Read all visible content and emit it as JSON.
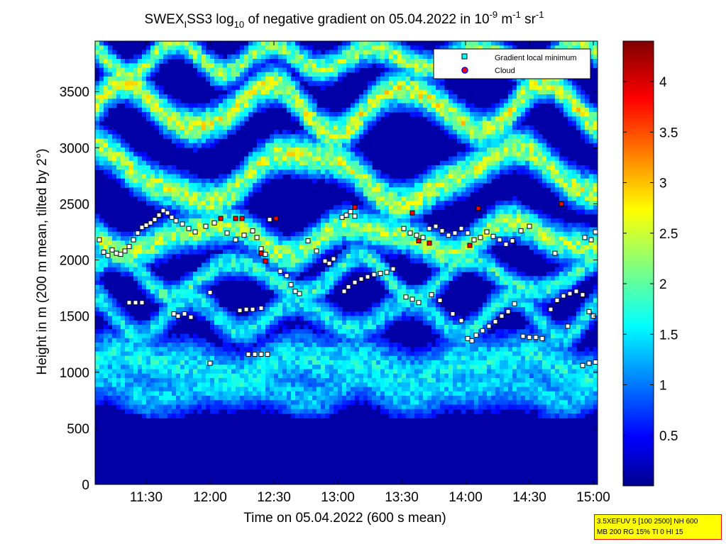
{
  "chart_data": {
    "type": "heatmap",
    "title": {
      "prefix": "SWEX",
      "subscript_1": "I",
      "middle": "SS3 log",
      "subscript_2": "10",
      "after_log": " of negative gradient on 05.04.2022 in 10",
      "sup_1": "-9",
      "unit_m": " m",
      "sup_2": "-1",
      "unit_sr": " sr",
      "sup_3": "-1"
    },
    "xlabel": "Time on 05.04.2022 (600 s mean)",
    "ylabel": "Height in m (200 m mean, tilted by 2°)",
    "x_range": [
      "11:06",
      "15:02"
    ],
    "x_ticks": [
      "11:30",
      "12:00",
      "12:30",
      "13:00",
      "13:30",
      "14:00",
      "14:30",
      "15:00"
    ],
    "y_range": [
      0,
      3950
    ],
    "y_ticks": [
      "0",
      "500",
      "1000",
      "1500",
      "2000",
      "2500",
      "3000",
      "3500"
    ],
    "colorbar": {
      "range": [
        0,
        4.4
      ],
      "ticks": [
        "0.5",
        "1",
        "1.5",
        "2",
        "2.5",
        "3",
        "3.5",
        "4"
      ],
      "colormap": "jet"
    },
    "legend": {
      "position": "top-right",
      "entries": [
        {
          "label": "Gradient local minimum",
          "marker": "square",
          "color": "#00ffff",
          "edge": "#000000"
        },
        {
          "label": "Cloud",
          "marker": "circle",
          "color": "#ff0000",
          "edge": "#0000ff"
        }
      ]
    },
    "layers": [
      {
        "base": 1050,
        "amp": 80,
        "freq": 0.9,
        "phase": 0.3,
        "thick": 260,
        "intensity": 1.55
      },
      {
        "base": 850,
        "amp": 60,
        "freq": 1.3,
        "phase": 1.2,
        "thick": 220,
        "intensity": 1.35
      },
      {
        "base": 1500,
        "amp": 150,
        "freq": 1.6,
        "phase": 2.0,
        "thick": 140,
        "intensity": 1.55
      },
      {
        "base": 1850,
        "amp": 160,
        "freq": 1.4,
        "phase": 0.5,
        "thick": 120,
        "intensity": 1.75
      },
      {
        "base": 2200,
        "amp": 120,
        "freq": 1.1,
        "phase": 3.1,
        "thick": 160,
        "intensity": 2.25
      },
      {
        "base": 2750,
        "amp": 220,
        "freq": 0.8,
        "phase": 1.7,
        "thick": 170,
        "intensity": 2.35
      },
      {
        "base": 3350,
        "amp": 200,
        "freq": 1.2,
        "phase": 0.2,
        "thick": 160,
        "intensity": 2.45
      },
      {
        "base": 3800,
        "amp": 120,
        "freq": 1.7,
        "phase": 2.6,
        "thick": 130,
        "intensity": 2.2
      }
    ],
    "gradient_minima": [
      {
        "x": "11:08",
        "y": 2180
      },
      {
        "x": "11:10",
        "y": 2070
      },
      {
        "x": "11:12",
        "y": 2040
      },
      {
        "x": "11:14",
        "y": 2090
      },
      {
        "x": "11:16",
        "y": 2060
      },
      {
        "x": "11:18",
        "y": 2050
      },
      {
        "x": "11:20",
        "y": 2080
      },
      {
        "x": "11:22",
        "y": 2120
      },
      {
        "x": "11:24",
        "y": 2180
      },
      {
        "x": "11:26",
        "y": 2240
      },
      {
        "x": "11:28",
        "y": 2290
      },
      {
        "x": "11:30",
        "y": 2310
      },
      {
        "x": "11:32",
        "y": 2330
      },
      {
        "x": "11:34",
        "y": 2360
      },
      {
        "x": "11:36",
        "y": 2400
      },
      {
        "x": "11:38",
        "y": 2440
      },
      {
        "x": "11:40",
        "y": 2420
      },
      {
        "x": "11:42",
        "y": 2380
      },
      {
        "x": "11:44",
        "y": 2350
      },
      {
        "x": "11:47",
        "y": 2320
      },
      {
        "x": "11:50",
        "y": 2280
      },
      {
        "x": "11:53",
        "y": 2250
      },
      {
        "x": "11:58",
        "y": 2300
      },
      {
        "x": "12:02",
        "y": 2330
      },
      {
        "x": "12:08",
        "y": 2240
      },
      {
        "x": "12:12",
        "y": 2180
      },
      {
        "x": "12:16",
        "y": 2220
      },
      {
        "x": "12:20",
        "y": 2260
      },
      {
        "x": "12:22",
        "y": 2200
      },
      {
        "x": "12:24",
        "y": 2100
      },
      {
        "x": "12:26",
        "y": 2050
      },
      {
        "x": "12:28",
        "y": 2360
      },
      {
        "x": "12:33",
        "y": 1900
      },
      {
        "x": "12:36",
        "y": 1860
      },
      {
        "x": "12:38",
        "y": 1780
      },
      {
        "x": "12:40",
        "y": 1720
      },
      {
        "x": "12:42",
        "y": 1700
      },
      {
        "x": "12:46",
        "y": 2170
      },
      {
        "x": "12:50",
        "y": 2080
      },
      {
        "x": "12:54",
        "y": 1990
      },
      {
        "x": "12:56",
        "y": 1970
      },
      {
        "x": "12:58",
        "y": 2010
      },
      {
        "x": "13:02",
        "y": 2380
      },
      {
        "x": "13:04",
        "y": 2400
      },
      {
        "x": "13:06",
        "y": 2430
      },
      {
        "x": "13:08",
        "y": 2390
      },
      {
        "x": "13:03",
        "y": 1720
      },
      {
        "x": "13:05",
        "y": 1760
      },
      {
        "x": "13:08",
        "y": 1800
      },
      {
        "x": "13:11",
        "y": 1830
      },
      {
        "x": "13:14",
        "y": 1850
      },
      {
        "x": "13:17",
        "y": 1870
      },
      {
        "x": "13:20",
        "y": 1880
      },
      {
        "x": "13:23",
        "y": 1890
      },
      {
        "x": "13:26",
        "y": 1920
      },
      {
        "x": "13:31",
        "y": 2280
      },
      {
        "x": "13:34",
        "y": 2240
      },
      {
        "x": "13:37",
        "y": 2220
      },
      {
        "x": "13:40",
        "y": 2200
      },
      {
        "x": "13:43",
        "y": 2280
      },
      {
        "x": "13:46",
        "y": 2300
      },
      {
        "x": "13:49",
        "y": 2260
      },
      {
        "x": "13:52",
        "y": 2220
      },
      {
        "x": "13:55",
        "y": 2240
      },
      {
        "x": "13:58",
        "y": 2280
      },
      {
        "x": "14:01",
        "y": 2240
      },
      {
        "x": "14:04",
        "y": 2180
      },
      {
        "x": "14:07",
        "y": 2200
      },
      {
        "x": "14:10",
        "y": 2250
      },
      {
        "x": "14:13",
        "y": 2210
      },
      {
        "x": "14:16",
        "y": 2180
      },
      {
        "x": "14:19",
        "y": 2140
      },
      {
        "x": "14:22",
        "y": 2170
      },
      {
        "x": "14:26",
        "y": 2260
      },
      {
        "x": "14:30",
        "y": 2300
      },
      {
        "x": "13:32",
        "y": 1670
      },
      {
        "x": "13:35",
        "y": 1650
      },
      {
        "x": "13:38",
        "y": 1620
      },
      {
        "x": "13:44",
        "y": 1690
      },
      {
        "x": "13:48",
        "y": 1640
      },
      {
        "x": "13:54",
        "y": 1520
      },
      {
        "x": "13:58",
        "y": 1460
      },
      {
        "x": "14:01",
        "y": 1300
      },
      {
        "x": "14:03",
        "y": 1280
      },
      {
        "x": "14:05",
        "y": 1330
      },
      {
        "x": "14:08",
        "y": 1370
      },
      {
        "x": "14:11",
        "y": 1410
      },
      {
        "x": "14:14",
        "y": 1450
      },
      {
        "x": "14:17",
        "y": 1500
      },
      {
        "x": "14:20",
        "y": 1540
      },
      {
        "x": "14:23",
        "y": 1610
      },
      {
        "x": "14:27",
        "y": 1320
      },
      {
        "x": "14:30",
        "y": 1310
      },
      {
        "x": "14:33",
        "y": 1310
      },
      {
        "x": "14:36",
        "y": 1300
      },
      {
        "x": "14:40",
        "y": 1560
      },
      {
        "x": "14:43",
        "y": 1640
      },
      {
        "x": "14:46",
        "y": 1680
      },
      {
        "x": "14:49",
        "y": 1700
      },
      {
        "x": "14:52",
        "y": 1720
      },
      {
        "x": "14:55",
        "y": 1690
      },
      {
        "x": "14:58",
        "y": 1540
      },
      {
        "x": "15:00",
        "y": 1500
      },
      {
        "x": "14:55",
        "y": 1060
      },
      {
        "x": "14:58",
        "y": 1080
      },
      {
        "x": "15:01",
        "y": 1090
      },
      {
        "x": "14:56",
        "y": 2200
      },
      {
        "x": "14:59",
        "y": 2180
      },
      {
        "x": "15:01",
        "y": 2250
      },
      {
        "x": "11:22",
        "y": 1620
      },
      {
        "x": "11:25",
        "y": 1620
      },
      {
        "x": "11:28",
        "y": 1620
      },
      {
        "x": "11:43",
        "y": 1520
      },
      {
        "x": "11:45",
        "y": 1500
      },
      {
        "x": "11:48",
        "y": 1520
      },
      {
        "x": "11:51",
        "y": 1490
      },
      {
        "x": "12:14",
        "y": 1550
      },
      {
        "x": "12:17",
        "y": 1560
      },
      {
        "x": "12:20",
        "y": 1560
      },
      {
        "x": "12:24",
        "y": 1570
      },
      {
        "x": "12:18",
        "y": 1160
      },
      {
        "x": "12:21",
        "y": 1160
      },
      {
        "x": "12:24",
        "y": 1160
      },
      {
        "x": "12:27",
        "y": 1160
      },
      {
        "x": "12:00",
        "y": 1080
      },
      {
        "x": "12:00",
        "y": 1710
      },
      {
        "x": "14:42",
        "y": 2060
      },
      {
        "x": "14:48",
        "y": 1410
      }
    ],
    "clouds": [
      {
        "x": "12:05",
        "y": 2370
      },
      {
        "x": "12:12",
        "y": 2370
      },
      {
        "x": "12:15",
        "y": 2370
      },
      {
        "x": "12:24",
        "y": 2060
      },
      {
        "x": "12:26",
        "y": 1990
      },
      {
        "x": "12:31",
        "y": 2370
      },
      {
        "x": "13:08",
        "y": 2470
      },
      {
        "x": "13:35",
        "y": 2420
      },
      {
        "x": "13:38",
        "y": 2170
      },
      {
        "x": "13:43",
        "y": 2150
      },
      {
        "x": "14:02",
        "y": 2130
      },
      {
        "x": "14:06",
        "y": 2460
      },
      {
        "x": "14:45",
        "y": 2500
      }
    ]
  },
  "info_box": {
    "line1": "3.5XEFUV 5 [100 2500] NH 600",
    "line2": "MB 200 RG 15% TI 0 HI 15"
  }
}
